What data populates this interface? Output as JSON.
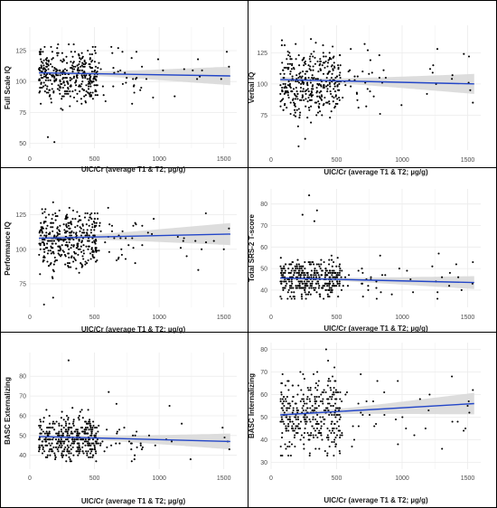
{
  "colors": {
    "fit_line": "#2346c8",
    "ci_band": "#d9d9d9",
    "points": "#000000",
    "gridline": "#ebebeb",
    "panel_border": "#000000"
  },
  "chart_data": [
    {
      "type": "scatter",
      "xlabel": "UIC/Cr (average T1 & T2; µg/g)",
      "ylabel": "Full Scale IQ",
      "xlim": [
        0,
        1600
      ],
      "ylim": [
        46,
        144
      ],
      "xticks": [
        0,
        500,
        1000,
        1500
      ],
      "yticks": [
        50,
        75,
        100,
        125
      ],
      "grid": true,
      "points_shown": "≈400 points; x 70–520 dense, sparse to 1550; y 75–135 centered ~105, low outliers at 51 and 55",
      "fit_line": {
        "x": [
          70,
          1550
        ],
        "y": [
          107,
          104.5
        ]
      },
      "ci_band": {
        "lower_at_x1550": 97,
        "upper_at_x1550": 112
      }
    },
    {
      "type": "scatter",
      "xlabel": "UIC/Cr (average T1 & T2; µg/g)",
      "ylabel": "Verbal IQ",
      "xlim": [
        0,
        1600
      ],
      "ylim": [
        47,
        147
      ],
      "xticks": [
        0,
        500,
        1000,
        1500
      ],
      "yticks": [
        75,
        100,
        125
      ],
      "grid": true,
      "points_shown": "≈400 points; y 65–140 centered ~100, low outliers near 50",
      "fit_line": {
        "x": [
          70,
          1550
        ],
        "y": [
          103.5,
          100
        ]
      },
      "ci_band": {
        "lower_at_x1550": 92,
        "upper_at_x1550": 108
      }
    },
    {
      "type": "scatter",
      "xlabel": "UIC/Cr (average T1 & T2; µg/g)",
      "ylabel": "Performance IQ",
      "xlim": [
        0,
        1600
      ],
      "ylim": [
        58,
        143
      ],
      "xticks": [
        0,
        500,
        1000,
        1500
      ],
      "yticks": [
        75,
        100,
        125
      ],
      "grid": true,
      "points_shown": "≈400 points; y 70–140 centered ~108, low outliers near 60",
      "fit_line": {
        "x": [
          70,
          1550
        ],
        "y": [
          108,
          111
        ]
      },
      "ci_band": {
        "lower_at_x1550": 103,
        "upper_at_x1550": 119
      }
    },
    {
      "type": "scatter",
      "xlabel": "UIC/Cr (average T1 & T2; µg/g)",
      "ylabel": "Total SRS-2 T-score",
      "xlim": [
        0,
        1600
      ],
      "ylim": [
        32,
        87
      ],
      "xticks": [
        0,
        500,
        1000,
        1500
      ],
      "yticks": [
        40,
        50,
        60,
        70,
        80
      ],
      "grid": true,
      "points_shown": "≈400 points; y 36–65 centered ~45, outliers up to 84",
      "fit_line": {
        "x": [
          70,
          1550
        ],
        "y": [
          45.6,
          43.5
        ]
      },
      "ci_band": {
        "lower_at_x1550": 40.5,
        "upper_at_x1550": 46.5
      }
    },
    {
      "type": "scatter",
      "xlabel": "UIC/Cr (average T1 & T2; µg/g)",
      "ylabel": "BASC Externalizing",
      "xlim": [
        0,
        1600
      ],
      "ylim": [
        33,
        92
      ],
      "xticks": [
        0,
        500,
        1000,
        1500
      ],
      "yticks": [
        40,
        50,
        60,
        70,
        80
      ],
      "grid": true,
      "points_shown": "≈400 points; y 37–78 centered ~49, outlier at 88",
      "fit_line": {
        "x": [
          70,
          1550
        ],
        "y": [
          49.5,
          47
        ]
      },
      "ci_band": {
        "lower_at_x1550": 43,
        "upper_at_x1550": 51
      }
    },
    {
      "type": "scatter",
      "xlabel": "UIC/Cr (average T1 & T2; µg/g)",
      "ylabel": "BASC Internalizing",
      "xlim": [
        0,
        1600
      ],
      "ylim": [
        27,
        83
      ],
      "xticks": [
        0,
        500,
        1000,
        1500
      ],
      "yticks": [
        30,
        40,
        50,
        60,
        70,
        80
      ],
      "grid": true,
      "points_shown": "≈400 points; y 33–80 centered ~50",
      "fit_line": {
        "x": [
          70,
          1550
        ],
        "y": [
          51,
          56
        ]
      },
      "ci_band": {
        "lower_at_x1550": 51.5,
        "upper_at_x1550": 61
      }
    }
  ]
}
